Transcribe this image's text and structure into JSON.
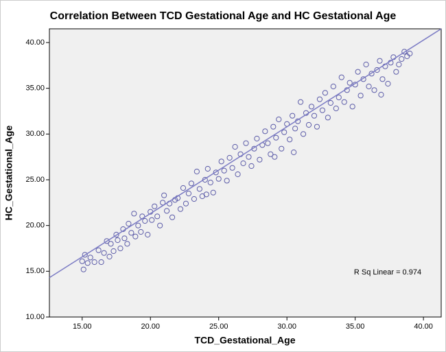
{
  "chart_data": {
    "type": "scatter",
    "title": "Correlation Between TCD Gestational Age and HC Gestational Age",
    "xlabel": "TCD_Gestational_Age",
    "ylabel": "HC_Gestational_Age",
    "annotation": "R Sq Linear = 0.974",
    "color": "#5b5ba8",
    "line_color": "#7b7bc4",
    "xlim": [
      12.6,
      41.3
    ],
    "ylim": [
      10,
      41.5
    ],
    "xticks": [
      {
        "value": 15,
        "label": "15.00"
      },
      {
        "value": 20,
        "label": "20.00"
      },
      {
        "value": 25,
        "label": "25.00"
      },
      {
        "value": 30,
        "label": "30.00"
      },
      {
        "value": 35,
        "label": "35.00"
      },
      {
        "value": 40,
        "label": "40.00"
      }
    ],
    "yticks": [
      {
        "value": 10,
        "label": "10.00"
      },
      {
        "value": 15,
        "label": "15.00"
      },
      {
        "value": 20,
        "label": "20.00"
      },
      {
        "value": 25,
        "label": "25.00"
      },
      {
        "value": 30,
        "label": "30.00"
      },
      {
        "value": 35,
        "label": "35.00"
      },
      {
        "value": 40,
        "label": "40.00"
      }
    ],
    "fit_line": {
      "x": [
        12.6,
        41.3
      ],
      "y": [
        14.3,
        41.5
      ]
    },
    "x": [
      15.0,
      15.1,
      15.2,
      15.4,
      15.6,
      15.9,
      16.2,
      16.4,
      16.6,
      16.8,
      17.0,
      17.1,
      17.3,
      17.5,
      17.6,
      17.8,
      18.0,
      18.1,
      18.3,
      18.4,
      18.6,
      18.8,
      18.9,
      19.1,
      19.3,
      19.4,
      19.6,
      19.8,
      20.0,
      20.1,
      20.3,
      20.5,
      20.7,
      20.9,
      21.0,
      21.2,
      21.4,
      21.6,
      21.8,
      22.0,
      22.2,
      22.4,
      22.6,
      22.8,
      23.0,
      23.2,
      23.4,
      23.6,
      23.8,
      24.0,
      24.2,
      24.4,
      24.6,
      24.8,
      25.0,
      25.2,
      25.4,
      25.6,
      25.8,
      26.0,
      26.2,
      26.4,
      26.6,
      26.8,
      27.0,
      27.2,
      27.4,
      27.6,
      27.8,
      28.0,
      28.2,
      28.4,
      28.6,
      28.8,
      29.0,
      29.2,
      29.4,
      29.6,
      29.8,
      30.0,
      30.2,
      30.4,
      30.6,
      30.8,
      31.0,
      31.2,
      31.4,
      31.6,
      31.8,
      32.0,
      32.2,
      32.4,
      32.6,
      32.8,
      33.0,
      33.2,
      33.4,
      33.6,
      33.8,
      34.0,
      34.2,
      34.4,
      34.6,
      34.8,
      35.0,
      35.2,
      35.4,
      35.6,
      35.8,
      36.0,
      36.2,
      36.4,
      36.6,
      36.8,
      37.0,
      37.2,
      37.4,
      37.6,
      37.8,
      38.0,
      38.2,
      38.4,
      38.6,
      38.8,
      39.0,
      30.5,
      29.1,
      36.9,
      24.1
    ],
    "y": [
      16.1,
      15.2,
      16.8,
      15.9,
      16.5,
      16.0,
      17.3,
      16.0,
      17.0,
      18.3,
      16.6,
      18.0,
      17.2,
      19.0,
      18.4,
      17.5,
      19.6,
      18.6,
      18.0,
      20.2,
      19.2,
      21.3,
      18.8,
      20.0,
      19.3,
      21.0,
      20.5,
      19.0,
      21.5,
      20.6,
      22.1,
      21.0,
      20.0,
      22.5,
      23.3,
      21.6,
      22.4,
      20.9,
      22.8,
      23.0,
      21.8,
      24.1,
      22.4,
      23.5,
      24.6,
      22.9,
      25.9,
      24.0,
      23.2,
      25.0,
      26.2,
      24.7,
      23.6,
      25.8,
      25.1,
      27.0,
      26.0,
      24.9,
      27.4,
      26.3,
      28.6,
      25.6,
      27.8,
      26.8,
      29.0,
      27.5,
      26.5,
      28.4,
      29.5,
      27.2,
      28.8,
      30.3,
      29.0,
      27.8,
      30.8,
      29.6,
      31.6,
      28.4,
      30.2,
      31.1,
      29.4,
      32.0,
      30.6,
      31.4,
      33.5,
      30.0,
      32.3,
      31.0,
      33.0,
      32.0,
      30.8,
      33.8,
      32.6,
      34.5,
      31.8,
      33.4,
      35.2,
      32.8,
      34.0,
      36.2,
      33.5,
      34.8,
      35.6,
      33.0,
      35.4,
      36.8,
      34.2,
      36.0,
      37.6,
      35.2,
      36.6,
      34.8,
      37.0,
      38.0,
      36.0,
      37.4,
      35.5,
      37.8,
      38.4,
      36.8,
      37.6,
      38.2,
      39.0,
      38.5,
      38.8,
      28.0,
      27.5,
      34.3,
      23.4
    ]
  }
}
